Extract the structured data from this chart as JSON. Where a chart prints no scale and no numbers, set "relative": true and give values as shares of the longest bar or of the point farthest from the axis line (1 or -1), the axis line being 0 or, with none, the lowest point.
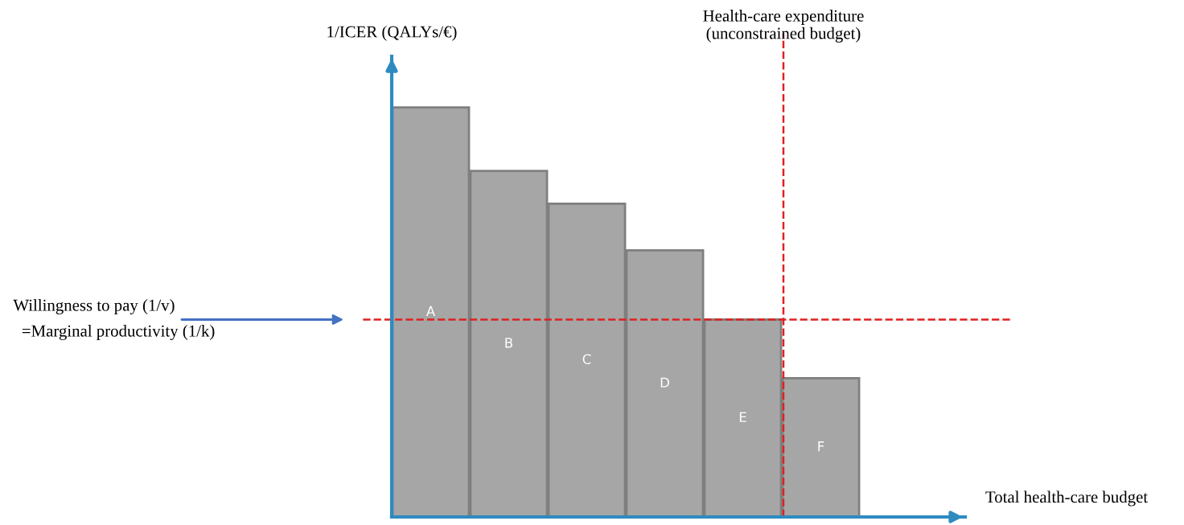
{
  "chart_data": {
    "type": "bar",
    "relative": true,
    "ylabel": "1/ICER (QALYs/€)",
    "annotations": [
      "Willingness to pay (1/v)\n  =Marginal productivity (1/k)",
      "Total health-care budget"
    ],
    "categories": [
      "A",
      "B",
      "C",
      "D",
      "E",
      "F"
    ],
    "values": [
      1,
      0.845,
      0.765,
      0.651,
      0.482,
      0.339
    ],
    "color": "#a6a6a6",
    "ref_lines": [
      {
        "axis": "y",
        "value": 0.482,
        "color": "#e02020",
        "line_style": "dashed"
      },
      {
        "axis": "x",
        "value": "E",
        "label": "Health-care expenditure\n(unconstrained budget)",
        "color": "#e02020",
        "line_style": "dashed"
      }
    ],
    "legend": false
  }
}
